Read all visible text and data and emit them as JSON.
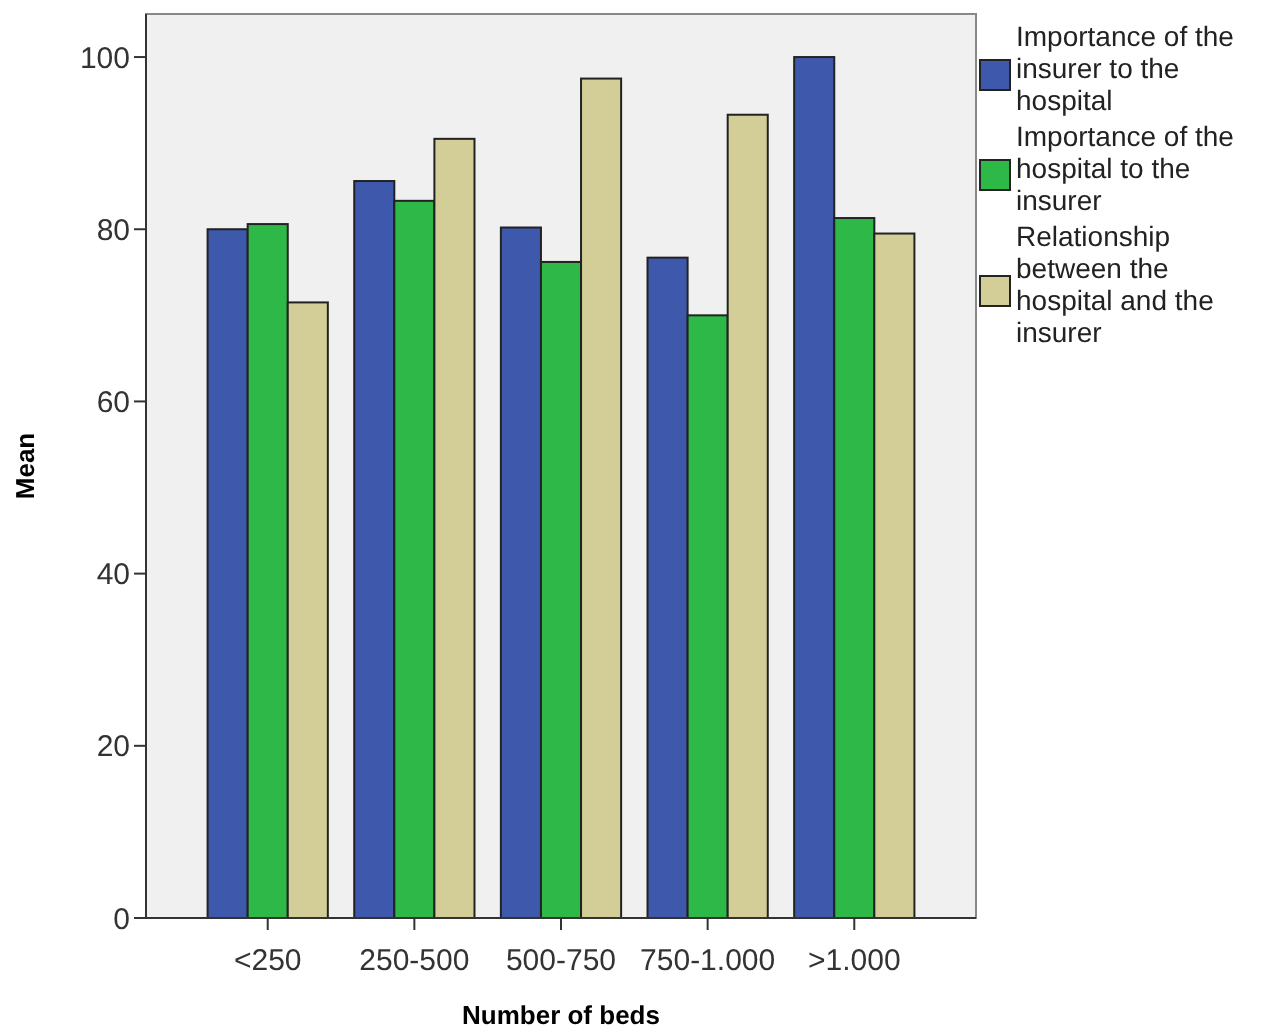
{
  "chart_data": {
    "type": "bar",
    "xlabel": "Number of beds",
    "ylabel": "Mean",
    "categories": [
      "<250",
      "250-500",
      "500-750",
      "750-1.000",
      ">1.000"
    ],
    "series": [
      {
        "name": "Importance of the insurer to the hospital",
        "color": "#3e58ac",
        "values": [
          80.0,
          85.6,
          80.2,
          76.7,
          100
        ]
      },
      {
        "name": "Importance of the hospital to the insurer",
        "color": "#2eb848",
        "values": [
          80.6,
          83.3,
          76.2,
          70.0,
          81.3
        ]
      },
      {
        "name": "Relationship between the hospital and the insurer",
        "color": "#d3ce97",
        "values": [
          71.5,
          90.5,
          97.5,
          93.3,
          79.5
        ]
      }
    ],
    "ylim": [
      0,
      105
    ],
    "yticks": [
      0,
      20,
      40,
      60,
      80,
      100
    ],
    "legend": "top right"
  }
}
